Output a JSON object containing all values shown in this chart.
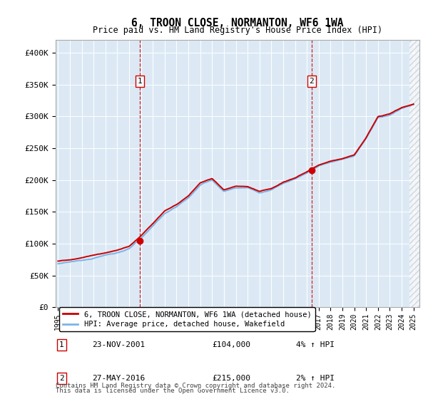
{
  "title": "6, TROON CLOSE, NORMANTON, WF6 1WA",
  "subtitle": "Price paid vs. HM Land Registry's House Price Index (HPI)",
  "ylabel_ticks": [
    "£0",
    "£50K",
    "£100K",
    "£150K",
    "£200K",
    "£250K",
    "£300K",
    "£350K",
    "£400K"
  ],
  "ytick_values": [
    0,
    50000,
    100000,
    150000,
    200000,
    250000,
    300000,
    350000,
    400000
  ],
  "ylim": [
    0,
    420000
  ],
  "xlim_start": 1994.8,
  "xlim_end": 2025.5,
  "background_color": "#dce9f5",
  "hpi_color": "#7ab4e8",
  "price_color": "#cc0000",
  "sale1_x": 2001.9,
  "sale1_y": 104000,
  "sale2_x": 2016.4,
  "sale2_y": 215000,
  "sale1_label": "23-NOV-2001",
  "sale1_price": "£104,000",
  "sale1_hpi": "4% ↑ HPI",
  "sale2_label": "27-MAY-2016",
  "sale2_price": "£215,000",
  "sale2_hpi": "2% ↑ HPI",
  "legend_line1": "6, TROON CLOSE, NORMANTON, WF6 1WA (detached house)",
  "legend_line2": "HPI: Average price, detached house, Wakefield",
  "footer1": "Contains HM Land Registry data © Crown copyright and database right 2024.",
  "footer2": "This data is licensed under the Open Government Licence v3.0.",
  "xticks": [
    1995,
    1996,
    1997,
    1998,
    1999,
    2000,
    2001,
    2002,
    2003,
    2004,
    2005,
    2006,
    2007,
    2008,
    2009,
    2010,
    2011,
    2012,
    2013,
    2014,
    2015,
    2016,
    2017,
    2018,
    2019,
    2020,
    2021,
    2022,
    2023,
    2024,
    2025
  ],
  "hpi_anchors_x": [
    1995,
    1997,
    1998,
    2000,
    2001,
    2002,
    2003,
    2004,
    2005,
    2006,
    2007,
    2008,
    2009,
    2010,
    2011,
    2012,
    2013,
    2014,
    2015,
    2016,
    2017,
    2018,
    2019,
    2020,
    2021,
    2022,
    2023,
    2024,
    2025
  ],
  "hpi_anchors_y": [
    68000,
    74000,
    78000,
    86000,
    92000,
    108000,
    128000,
    148000,
    158000,
    172000,
    192000,
    200000,
    182000,
    188000,
    188000,
    180000,
    185000,
    195000,
    202000,
    212000,
    222000,
    228000,
    232000,
    238000,
    265000,
    298000,
    302000,
    312000,
    318000
  ]
}
